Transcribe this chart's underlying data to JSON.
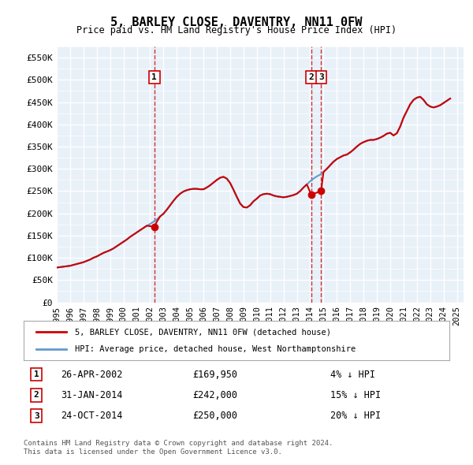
{
  "title": "5, BARLEY CLOSE, DAVENTRY, NN11 0FW",
  "subtitle": "Price paid vs. HM Land Registry's House Price Index (HPI)",
  "legend_line1": "5, BARLEY CLOSE, DAVENTRY, NN11 0FW (detached house)",
  "legend_line2": "HPI: Average price, detached house, West Northamptonshire",
  "transactions": [
    {
      "num": 1,
      "date": "26-APR-2002",
      "price": 169950,
      "pct": "4%",
      "dir": "↓",
      "year": 2002.32
    },
    {
      "num": 2,
      "date": "31-JAN-2014",
      "price": 242000,
      "pct": "15%",
      "dir": "↓",
      "year": 2014.08
    },
    {
      "num": 3,
      "date": "24-OCT-2014",
      "price": 250000,
      "pct": "20%",
      "dir": "↓",
      "year": 2014.82
    }
  ],
  "footnote1": "Contains HM Land Registry data © Crown copyright and database right 2024.",
  "footnote2": "This data is licensed under the Open Government Licence v3.0.",
  "ylim": [
    0,
    575000
  ],
  "yticks": [
    0,
    50000,
    100000,
    150000,
    200000,
    250000,
    300000,
    350000,
    400000,
    450000,
    500000,
    550000
  ],
  "ytick_labels": [
    "£0",
    "£50K",
    "£100K",
    "£150K",
    "£200K",
    "£250K",
    "£300K",
    "£350K",
    "£400K",
    "£450K",
    "£500K",
    "£550K"
  ],
  "xlim_start": 1995,
  "xlim_end": 2025.5,
  "bg_color": "#e8f0f8",
  "grid_color": "#ffffff",
  "red_color": "#cc0000",
  "blue_color": "#6699cc",
  "hpi_data_x": [
    1995,
    1995.25,
    1995.5,
    1995.75,
    1996,
    1996.25,
    1996.5,
    1996.75,
    1997,
    1997.25,
    1997.5,
    1997.75,
    1998,
    1998.25,
    1998.5,
    1998.75,
    1999,
    1999.25,
    1999.5,
    1999.75,
    2000,
    2000.25,
    2000.5,
    2000.75,
    2001,
    2001.25,
    2001.5,
    2001.75,
    2002,
    2002.25,
    2002.5,
    2002.75,
    2003,
    2003.25,
    2003.5,
    2003.75,
    2004,
    2004.25,
    2004.5,
    2004.75,
    2005,
    2005.25,
    2005.5,
    2005.75,
    2006,
    2006.25,
    2006.5,
    2006.75,
    2007,
    2007.25,
    2007.5,
    2007.75,
    2008,
    2008.25,
    2008.5,
    2008.75,
    2009,
    2009.25,
    2009.5,
    2009.75,
    2010,
    2010.25,
    2010.5,
    2010.75,
    2011,
    2011.25,
    2011.5,
    2011.75,
    2012,
    2012.25,
    2012.5,
    2012.75,
    2013,
    2013.25,
    2013.5,
    2013.75,
    2014,
    2014.25,
    2014.5,
    2014.75,
    2015,
    2015.25,
    2015.5,
    2015.75,
    2016,
    2016.25,
    2016.5,
    2016.75,
    2017,
    2017.25,
    2017.5,
    2017.75,
    2018,
    2018.25,
    2018.5,
    2018.75,
    2019,
    2019.25,
    2019.5,
    2019.75,
    2020,
    2020.25,
    2020.5,
    2020.75,
    2021,
    2021.25,
    2021.5,
    2021.75,
    2022,
    2022.25,
    2022.5,
    2022.75,
    2023,
    2023.25,
    2023.5,
    2023.75,
    2024,
    2024.25,
    2024.5
  ],
  "hpi_data_y": [
    78000,
    79000,
    80000,
    81000,
    82000,
    84000,
    86000,
    88000,
    90000,
    93000,
    96000,
    100000,
    103000,
    107000,
    111000,
    114000,
    117000,
    121000,
    126000,
    131000,
    136000,
    141000,
    147000,
    152000,
    157000,
    162000,
    167000,
    172000,
    176000,
    181000,
    186000,
    193000,
    199000,
    208000,
    218000,
    228000,
    237000,
    244000,
    249000,
    252000,
    254000,
    255000,
    255000,
    254000,
    254000,
    258000,
    263000,
    269000,
    275000,
    280000,
    282000,
    278000,
    268000,
    253000,
    237000,
    222000,
    214000,
    213000,
    218000,
    227000,
    233000,
    240000,
    243000,
    244000,
    243000,
    240000,
    238000,
    237000,
    236000,
    237000,
    239000,
    241000,
    244000,
    250000,
    258000,
    265000,
    272000,
    278000,
    283000,
    287000,
    293000,
    300000,
    308000,
    316000,
    322000,
    326000,
    330000,
    332000,
    337000,
    343000,
    350000,
    356000,
    360000,
    363000,
    365000,
    365000,
    367000,
    370000,
    374000,
    379000,
    381000,
    375000,
    380000,
    395000,
    415000,
    430000,
    445000,
    455000,
    460000,
    462000,
    455000,
    445000,
    440000,
    438000,
    440000,
    443000,
    448000,
    453000,
    458000
  ],
  "price_data_x": [
    1995.0,
    1995.25,
    1995.5,
    1995.75,
    1996,
    1996.25,
    1996.5,
    1996.75,
    1997,
    1997.25,
    1997.5,
    1997.75,
    1998,
    1998.25,
    1998.5,
    1998.75,
    1999,
    1999.25,
    1999.5,
    1999.75,
    2000,
    2000.25,
    2000.5,
    2000.75,
    2001,
    2001.25,
    2001.5,
    2001.75,
    2002.32,
    2002.5,
    2002.75,
    2003,
    2003.25,
    2003.5,
    2003.75,
    2004,
    2004.25,
    2004.5,
    2004.75,
    2005,
    2005.25,
    2005.5,
    2005.75,
    2006,
    2006.25,
    2006.5,
    2006.75,
    2007,
    2007.25,
    2007.5,
    2007.75,
    2008,
    2008.25,
    2008.5,
    2008.75,
    2009,
    2009.25,
    2009.5,
    2009.75,
    2010,
    2010.25,
    2010.5,
    2010.75,
    2011,
    2011.25,
    2011.5,
    2011.75,
    2012,
    2012.25,
    2012.5,
    2012.75,
    2013,
    2013.25,
    2013.5,
    2013.75,
    2014.08,
    2014.82,
    2015,
    2015.25,
    2015.5,
    2015.75,
    2016,
    2016.25,
    2016.5,
    2016.75,
    2017,
    2017.25,
    2017.5,
    2017.75,
    2018,
    2018.25,
    2018.5,
    2018.75,
    2019,
    2019.25,
    2019.5,
    2019.75,
    2020,
    2020.25,
    2020.5,
    2020.75,
    2021,
    2021.25,
    2021.5,
    2021.75,
    2022,
    2022.25,
    2022.5,
    2022.75,
    2023,
    2023.25,
    2023.5,
    2023.75,
    2024,
    2024.25,
    2024.5
  ],
  "price_data_y": [
    78000,
    79000,
    80000,
    81000,
    82000,
    84000,
    86000,
    88000,
    90000,
    93000,
    96000,
    100000,
    103000,
    107000,
    111000,
    114000,
    117000,
    121000,
    126000,
    131000,
    136000,
    141000,
    147000,
    152000,
    157000,
    162000,
    167000,
    172000,
    169950,
    181000,
    193000,
    199000,
    208000,
    218000,
    228000,
    237000,
    244000,
    249000,
    252000,
    254000,
    255000,
    255000,
    254000,
    254000,
    258000,
    263000,
    269000,
    275000,
    280000,
    282000,
    278000,
    268000,
    253000,
    237000,
    222000,
    214000,
    213000,
    218000,
    227000,
    233000,
    240000,
    243000,
    244000,
    243000,
    240000,
    238000,
    237000,
    236000,
    237000,
    239000,
    241000,
    244000,
    250000,
    258000,
    265000,
    242000,
    250000,
    293000,
    300000,
    308000,
    316000,
    322000,
    326000,
    330000,
    332000,
    337000,
    343000,
    350000,
    356000,
    360000,
    363000,
    365000,
    365000,
    367000,
    370000,
    374000,
    379000,
    381000,
    375000,
    380000,
    395000,
    415000,
    430000,
    445000,
    455000,
    460000,
    462000,
    455000,
    445000,
    440000,
    438000,
    440000,
    443000,
    448000,
    453000,
    458000
  ]
}
